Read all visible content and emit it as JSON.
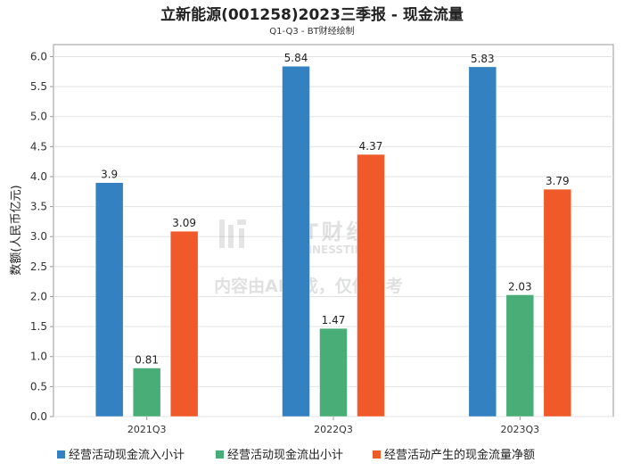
{
  "chart_data": {
    "type": "bar",
    "title": "立新能源(001258)2023三季报 - 现金流量",
    "subtitle": "Q1-Q3 - BT财经绘制",
    "ylabel": "数额(人民币亿元)",
    "xlabel": "",
    "categories": [
      "2021Q3",
      "2022Q3",
      "2023Q3"
    ],
    "ylim": [
      0,
      6.2
    ],
    "yticks": [
      "0.0",
      "0.5",
      "1.0",
      "1.5",
      "2.0",
      "2.5",
      "3.0",
      "3.5",
      "4.0",
      "4.5",
      "5.0",
      "5.5",
      "6.0"
    ],
    "grid": true,
    "legend_position": "bottom",
    "series": [
      {
        "name": "经营活动现金流入小计",
        "color": "#3481c1",
        "values": [
          3.9,
          5.84,
          5.83
        ],
        "labels": [
          "3.9",
          "5.84",
          "5.83"
        ]
      },
      {
        "name": "经营活动现金流出小计",
        "color": "#48ad77",
        "values": [
          0.81,
          1.47,
          2.03
        ],
        "labels": [
          "0.81",
          "1.47",
          "2.03"
        ]
      },
      {
        "name": "经营活动产生的现金流量净额",
        "color": "#f05a2a",
        "values": [
          3.09,
          4.37,
          3.79
        ],
        "labels": [
          "3.09",
          "4.37",
          "3.79"
        ]
      }
    ]
  },
  "watermark": {
    "brand": "BT财经",
    "brand_en": "BUSINESSTIMES",
    "notice": "内容由AI生成，仅供参考"
  }
}
